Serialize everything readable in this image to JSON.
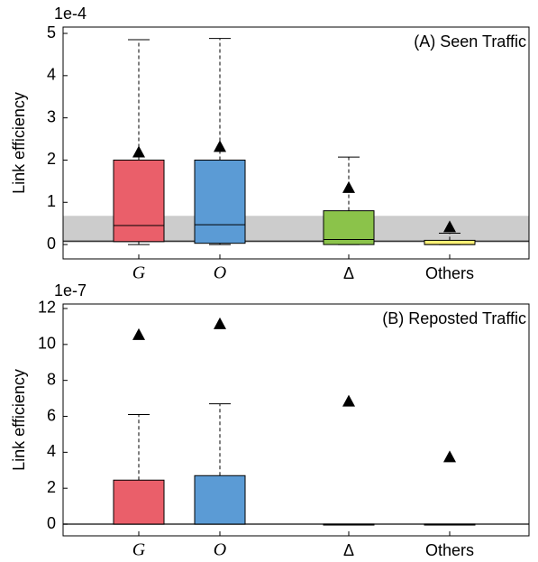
{
  "chart_data": [
    {
      "type": "box",
      "offset_label": "1e-4",
      "annotation": "(A) Seen Traffic",
      "ylabel": "Link efficiency",
      "categories": [
        "G",
        "O",
        "Δ",
        "Others"
      ],
      "colors": [
        "#ea5f6a",
        "#5b9bd5",
        "#8bc34a",
        "#fff176"
      ],
      "boxes": {
        "whislo": [
          0,
          0,
          0,
          0
        ],
        "q1": [
          0.07,
          0.03,
          0,
          0
        ],
        "median": [
          0.45,
          0.47,
          0.12,
          0
        ],
        "q3": [
          2.0,
          2.0,
          0.8,
          0.1
        ],
        "whishi": [
          4.85,
          4.88,
          2.07,
          0.27
        ],
        "mean": [
          2.17,
          2.3,
          1.33,
          0.4
        ]
      },
      "band": [
        0.05,
        0.68
      ],
      "band_color": "#cccccc",
      "reference_line": 0.08,
      "ylim": [
        -0.34,
        5.15
      ],
      "yticks": [
        0,
        1,
        2,
        3,
        4,
        5
      ]
    },
    {
      "type": "box",
      "offset_label": "1e-7",
      "annotation": "(B) Reposted Traffic",
      "ylabel": "Link efficiency",
      "categories": [
        "G",
        "O",
        "Δ",
        "Others"
      ],
      "colors": [
        "#ea5f6a",
        "#5b9bd5",
        "#8bc34a",
        "#fff176"
      ],
      "boxes": {
        "whislo": [
          0,
          0,
          0,
          0
        ],
        "q1": [
          0,
          0,
          0,
          0
        ],
        "median": [
          0,
          0,
          0,
          0
        ],
        "q3": [
          2.45,
          2.7,
          0,
          0
        ],
        "whishi": [
          6.1,
          6.7,
          0,
          0
        ],
        "mean": [
          10.5,
          11.1,
          6.8,
          3.7
        ]
      },
      "reference_line": 0,
      "ylim": [
        -0.65,
        12.25
      ],
      "yticks": [
        0,
        2,
        4,
        6,
        8,
        10,
        12
      ]
    }
  ]
}
